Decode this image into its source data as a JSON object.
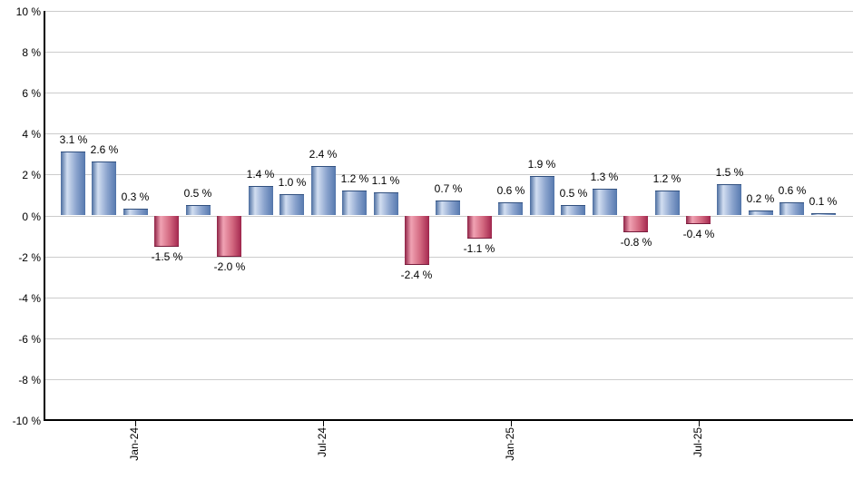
{
  "chart_data": {
    "type": "bar",
    "title": "",
    "xlabel": "",
    "ylabel": "",
    "y_unit": "%",
    "ylim": [
      -10,
      10
    ],
    "y_tick_step": 2,
    "grid": "horizontal",
    "legend_position": "none",
    "y_tick_labels": [
      "10 %",
      "8 %",
      "6 %",
      "4 %",
      "2 %",
      "0 %",
      "-2 %",
      "-4 %",
      "-6 %",
      "-8 %",
      "-10 %"
    ],
    "y_tick_values": [
      10,
      8,
      6,
      4,
      2,
      0,
      -2,
      -4,
      -6,
      -8,
      -10
    ],
    "values": [
      3.1,
      2.6,
      0.3,
      -1.5,
      0.5,
      -2.0,
      1.4,
      1.0,
      2.4,
      1.2,
      1.1,
      -2.4,
      0.7,
      -1.1,
      0.6,
      1.9,
      0.5,
      1.3,
      -0.8,
      1.2,
      -0.4,
      1.5,
      0.2,
      0.6,
      0.1
    ],
    "value_labels": [
      "3.1 %",
      "2.6 %",
      "0.3 %",
      "-1.5 %",
      "0.5 %",
      "-2.0 %",
      "1.4 %",
      "1.0 %",
      "2.4 %",
      "1.2 %",
      "1.1 %",
      "-2.4 %",
      "0.7 %",
      "-1.1 %",
      "0.6 %",
      "1.9 %",
      "0.5 %",
      "1.3 %",
      "-0.8 %",
      "1.2 %",
      "-0.4 %",
      "1.5 %",
      "0.2 %",
      "0.6 %",
      "0.1 %"
    ],
    "x_ticks": [
      {
        "label": "Jan-24",
        "bar_index": 2
      },
      {
        "label": "Jul-24",
        "bar_index": 8
      },
      {
        "label": "Jan-25",
        "bar_index": 14
      },
      {
        "label": "Jul-25",
        "bar_index": 20
      }
    ],
    "colors": {
      "positive_bar_main": "#5a7cb1",
      "positive_bar_mid": "#8aa3cd",
      "positive_bar_light": "#d2def1",
      "positive_bar_dark": "#4a6c9e",
      "negative_bar_main": "#a72c52",
      "negative_bar_mid": "#d2677f",
      "negative_bar_light": "#f0a2b3",
      "negative_bar_dark": "#8e2145",
      "gridline": "#cccccc",
      "axis": "#000000",
      "label_text": "#000000",
      "background": "#ffffff"
    }
  }
}
